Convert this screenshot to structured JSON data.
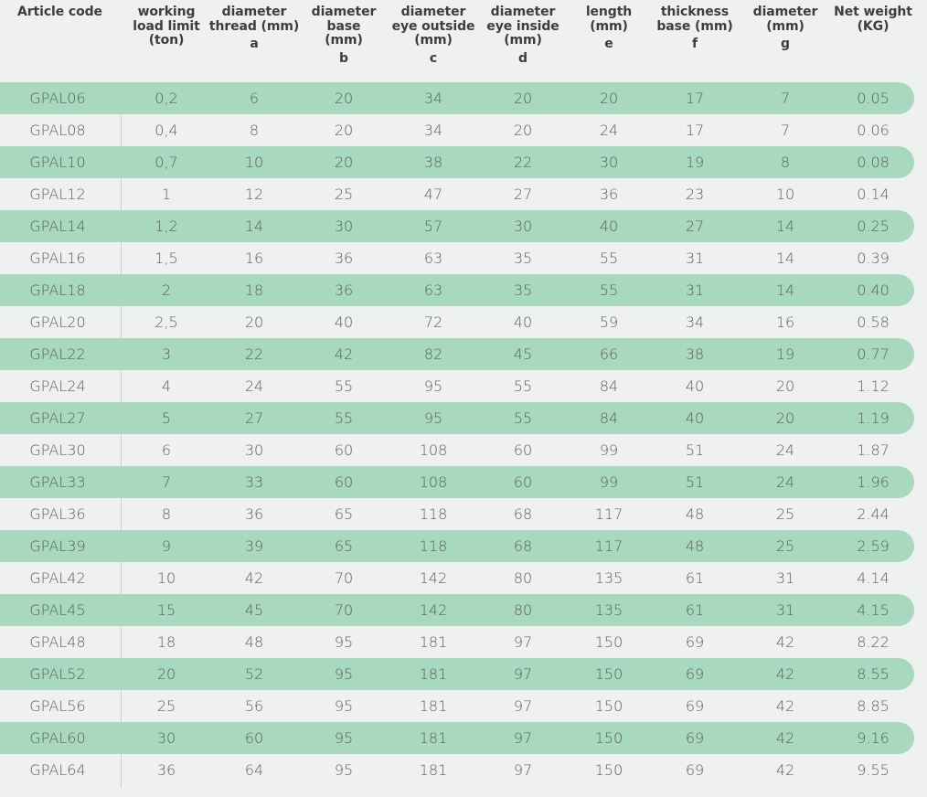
{
  "header": [
    {
      "lines": [
        "Article code"
      ],
      "sub": ""
    },
    {
      "lines": [
        "working",
        "load limit",
        "(ton)"
      ],
      "sub": ""
    },
    {
      "lines": [
        "diameter",
        "thread (mm)"
      ],
      "sub": "a"
    },
    {
      "lines": [
        "diameter",
        "base (mm)"
      ],
      "sub": "b"
    },
    {
      "lines": [
        "diameter",
        "eye outside",
        "(mm)"
      ],
      "sub": "c"
    },
    {
      "lines": [
        "diameter",
        "eye inside",
        "(mm)"
      ],
      "sub": "d"
    },
    {
      "lines": [
        "length",
        "(mm)"
      ],
      "sub": "e"
    },
    {
      "lines": [
        "thickness",
        "base (mm)"
      ],
      "sub": "f"
    },
    {
      "lines": [
        "diameter",
        "(mm)"
      ],
      "sub": "g"
    },
    {
      "lines": [
        "Net weight",
        "(KG)"
      ],
      "sub": ""
    }
  ],
  "rows": [
    [
      "GPAL06",
      "0,2",
      "6",
      "20",
      "34",
      "20",
      "20",
      "17",
      "7",
      "0.05"
    ],
    [
      "GPAL08",
      "0,4",
      "8",
      "20",
      "34",
      "20",
      "24",
      "17",
      "7",
      "0.06"
    ],
    [
      "GPAL10",
      "0,7",
      "10",
      "20",
      "38",
      "22",
      "30",
      "19",
      "8",
      "0.08"
    ],
    [
      "GPAL12",
      "1",
      "12",
      "25",
      "47",
      "27",
      "36",
      "23",
      "10",
      "0.14"
    ],
    [
      "GPAL14",
      "1,2",
      "14",
      "30",
      "57",
      "30",
      "40",
      "27",
      "14",
      "0.25"
    ],
    [
      "GPAL16",
      "1,5",
      "16",
      "36",
      "63",
      "35",
      "55",
      "31",
      "14",
      "0.39"
    ],
    [
      "GPAL18",
      "2",
      "18",
      "36",
      "63",
      "35",
      "55",
      "31",
      "14",
      "0.40"
    ],
    [
      "GPAL20",
      "2,5",
      "20",
      "40",
      "72",
      "40",
      "59",
      "34",
      "16",
      "0.58"
    ],
    [
      "GPAL22",
      "3",
      "22",
      "42",
      "82",
      "45",
      "66",
      "38",
      "19",
      "0.77"
    ],
    [
      "GPAL24",
      "4",
      "24",
      "55",
      "95",
      "55",
      "84",
      "40",
      "20",
      "1.12"
    ],
    [
      "GPAL27",
      "5",
      "27",
      "55",
      "95",
      "55",
      "84",
      "40",
      "20",
      "1.19"
    ],
    [
      "GPAL30",
      "6",
      "30",
      "60",
      "108",
      "60",
      "99",
      "51",
      "24",
      "1.87"
    ],
    [
      "GPAL33",
      "7",
      "33",
      "60",
      "108",
      "60",
      "99",
      "51",
      "24",
      "1.96"
    ],
    [
      "GPAL36",
      "8",
      "36",
      "65",
      "118",
      "68",
      "117",
      "48",
      "25",
      "2.44"
    ],
    [
      "GPAL39",
      "9",
      "39",
      "65",
      "118",
      "68",
      "117",
      "48",
      "25",
      "2.59"
    ],
    [
      "GPAL42",
      "10",
      "42",
      "70",
      "142",
      "80",
      "135",
      "61",
      "31",
      "4.14"
    ],
    [
      "GPAL45",
      "15",
      "45",
      "70",
      "142",
      "80",
      "135",
      "61",
      "31",
      "4.15"
    ],
    [
      "GPAL48",
      "18",
      "48",
      "95",
      "181",
      "97",
      "150",
      "69",
      "42",
      "8.22"
    ],
    [
      "GPAL52",
      "20",
      "52",
      "95",
      "181",
      "97",
      "150",
      "69",
      "42",
      "8.55"
    ],
    [
      "GPAL56",
      "25",
      "56",
      "95",
      "181",
      "97",
      "150",
      "69",
      "42",
      "8.85"
    ],
    [
      "GPAL60",
      "30",
      "60",
      "95",
      "181",
      "97",
      "150",
      "69",
      "42",
      "9.16"
    ],
    [
      "GPAL64",
      "36",
      "64",
      "95",
      "181",
      "97",
      "150",
      "69",
      "42",
      "9.55"
    ]
  ],
  "colors": {
    "stripe": "#a8d8be",
    "background": "#eff1f0",
    "text": "#5b5d5d"
  }
}
